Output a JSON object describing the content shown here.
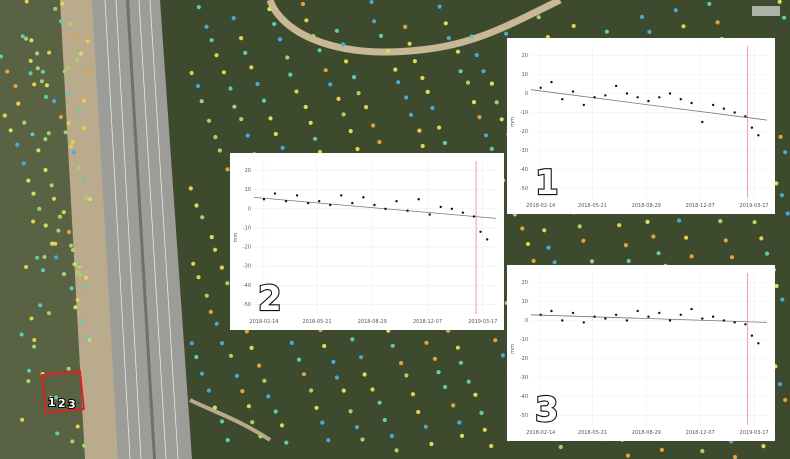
{
  "chart_data": [
    {
      "type": "scatter",
      "panel_label": "1",
      "y_label": "mm",
      "x": [
        "2018-02-14",
        "2018-03-06",
        "2018-03-26",
        "2018-04-15",
        "2018-05-05",
        "2018-05-25",
        "2018-06-14",
        "2018-07-04",
        "2018-07-24",
        "2018-08-13",
        "2018-09-02",
        "2018-09-22",
        "2018-10-12",
        "2018-11-01",
        "2018-11-21",
        "2018-12-11",
        "2018-12-31",
        "2019-01-20",
        "2019-02-09",
        "2019-03-01",
        "2019-03-13",
        "2019-03-25"
      ],
      "values": [
        3,
        6,
        -3,
        1,
        -6,
        -2,
        -1,
        4,
        0,
        -2,
        -4,
        -2,
        0,
        -3,
        -5,
        -15,
        -6,
        -8,
        -10,
        -12,
        -18,
        -22
      ],
      "trend": {
        "x": [
          "2018-01-27",
          "2019-04-10"
        ],
        "values": [
          2,
          -14
        ]
      },
      "event_x": "2019-03-05",
      "xlim": [
        "2018-01-27",
        "2019-04-10"
      ],
      "xticks": [
        "2018-02-14",
        "2018-05-21",
        "2018-08-29",
        "2018-12-07",
        "2019-03-17"
      ],
      "ylim": [
        -55,
        25
      ],
      "yticks": [
        20,
        10,
        0,
        -10,
        -20,
        -30,
        -40,
        -50
      ],
      "grid": true
    },
    {
      "type": "scatter",
      "panel_label": "2",
      "y_label": "mm",
      "x": [
        "2018-02-14",
        "2018-03-06",
        "2018-03-26",
        "2018-04-15",
        "2018-05-05",
        "2018-05-25",
        "2018-06-14",
        "2018-07-04",
        "2018-07-24",
        "2018-08-13",
        "2018-09-02",
        "2018-09-22",
        "2018-10-12",
        "2018-11-01",
        "2018-11-21",
        "2018-12-11",
        "2018-12-31",
        "2019-01-20",
        "2019-02-09",
        "2019-03-01",
        "2019-03-13",
        "2019-03-25"
      ],
      "values": [
        5,
        8,
        4,
        7,
        3,
        4,
        2,
        7,
        3,
        6,
        2,
        0,
        4,
        -1,
        5,
        -3,
        1,
        0,
        -2,
        -4,
        -12,
        -16
      ],
      "trend": {
        "x": [
          "2018-01-27",
          "2019-04-10"
        ],
        "values": [
          6,
          -5
        ]
      },
      "event_x": "2019-03-05",
      "xlim": [
        "2018-01-27",
        "2019-04-10"
      ],
      "xticks": [
        "2018-02-14",
        "2018-05-21",
        "2018-08-29",
        "2018-12-07",
        "2019-03-17"
      ],
      "ylim": [
        -55,
        25
      ],
      "yticks": [
        20,
        10,
        0,
        -10,
        -20,
        -30,
        -40,
        -50
      ],
      "grid": true
    },
    {
      "type": "scatter",
      "panel_label": "3",
      "y_label": "mm",
      "x": [
        "2018-02-14",
        "2018-03-06",
        "2018-03-26",
        "2018-04-15",
        "2018-05-05",
        "2018-05-25",
        "2018-06-14",
        "2018-07-04",
        "2018-07-24",
        "2018-08-13",
        "2018-09-02",
        "2018-09-22",
        "2018-10-12",
        "2018-11-01",
        "2018-11-21",
        "2018-12-11",
        "2018-12-31",
        "2019-01-20",
        "2019-02-09",
        "2019-03-01",
        "2019-03-13",
        "2019-03-25"
      ],
      "values": [
        3,
        5,
        0,
        4,
        -1,
        2,
        1,
        3,
        0,
        5,
        2,
        4,
        0,
        3,
        6,
        1,
        2,
        0,
        -1,
        -2,
        -8,
        -12
      ],
      "trend": {
        "x": [
          "2018-01-27",
          "2019-04-10"
        ],
        "values": [
          3,
          -1
        ]
      },
      "event_x": "2019-03-05",
      "xlim": [
        "2018-01-27",
        "2019-04-10"
      ],
      "xticks": [
        "2018-02-14",
        "2018-05-21",
        "2018-08-29",
        "2018-12-07",
        "2019-03-17"
      ],
      "ylim": [
        -55,
        25
      ],
      "yticks": [
        20,
        10,
        0,
        -10,
        -20,
        -30,
        -40,
        -50
      ],
      "grid": true
    }
  ],
  "site_labels": [
    "1",
    "2",
    "3"
  ]
}
